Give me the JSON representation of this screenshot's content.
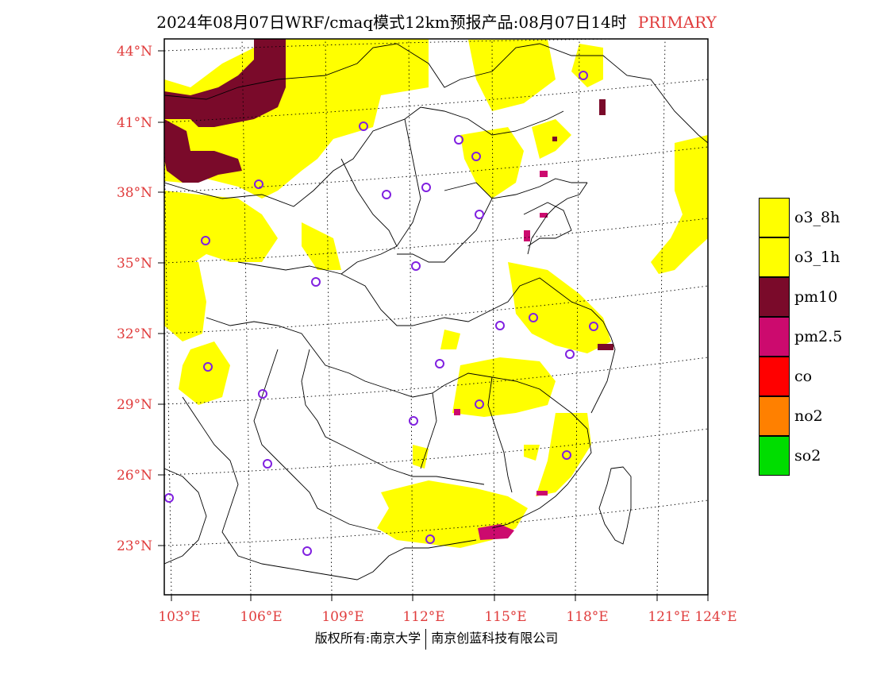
{
  "title": {
    "text": "2024年08月07日WRF/cmaq模式12km预报产品:08月07日14时",
    "tag": "PRIMARY",
    "tag_color": "#e03c3c"
  },
  "map": {
    "lon_range": [
      102.7,
      124
    ],
    "lat_range": [
      20.5,
      44.5
    ],
    "lat_labels": [
      {
        "value": 44,
        "text": "44°N"
      },
      {
        "value": 41,
        "text": "41°N"
      },
      {
        "value": 38,
        "text": "38°N"
      },
      {
        "value": 35,
        "text": "35°N"
      },
      {
        "value": 32,
        "text": "32°N"
      },
      {
        "value": 29,
        "text": "29°N"
      },
      {
        "value": 26,
        "text": "26°N"
      },
      {
        "value": 23,
        "text": "23°N"
      }
    ],
    "lon_labels": [
      {
        "value": 103,
        "text": "103°E"
      },
      {
        "value": 106,
        "text": "106°E"
      },
      {
        "value": 109,
        "text": "109°E"
      },
      {
        "value": 112,
        "text": "112°E"
      },
      {
        "value": 115,
        "text": "115°E"
      },
      {
        "value": 118,
        "text": "118°E"
      },
      {
        "value": 121,
        "text": "121°E"
      },
      {
        "value": 124,
        "text": "124°E"
      }
    ],
    "primary_pollutant_regions": [
      {
        "pollutant": "pm10",
        "color": "#7a0a2a",
        "area": "Inner Mongolia / northwest corner"
      },
      {
        "pollutant": "o3_1h",
        "color": "#ffff00",
        "area": "North China, Yangtze River, South China, Sichuan basin edges"
      },
      {
        "pollutant": "pm2.5",
        "color": "#cc0a6e",
        "area": "Pearl River Delta east, Shandong coast"
      }
    ],
    "stations_color": "#8020e0"
  },
  "legend": {
    "items": [
      {
        "label": "o3_8h",
        "color": "#ffff00"
      },
      {
        "label": "o3_1h",
        "color": "#ffff00"
      },
      {
        "label": "pm10",
        "color": "#7a0a2a"
      },
      {
        "label": "pm2.5",
        "color": "#cc0a6e"
      },
      {
        "label": "co",
        "color": "#ff0000"
      },
      {
        "label": "no2",
        "color": "#ff8000"
      },
      {
        "label": "so2",
        "color": "#00dd00"
      }
    ]
  },
  "footer": {
    "left": "版权所有:南京大学",
    "right": "南京创蓝科技有限公司"
  }
}
